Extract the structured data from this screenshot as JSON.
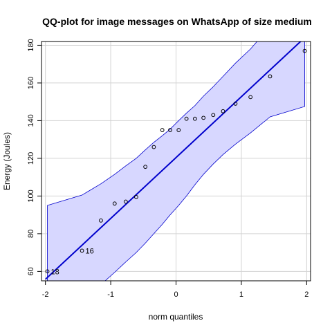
{
  "chart_data": {
    "type": "scatter",
    "title": "QQ-plot for image messages on WhatsApp of size medium",
    "xlabel": "norm quantiles",
    "ylabel": "Energy (Joules)",
    "xlim": [
      -2.06,
      2.06
    ],
    "ylim": [
      55,
      182
    ],
    "xticks": [
      -2,
      -1,
      0,
      1,
      2
    ],
    "yticks": [
      60,
      80,
      100,
      120,
      140,
      160,
      180
    ],
    "grid": true,
    "colors": {
      "band_fill": "#d7d7ff",
      "band_edge": "#0000cc",
      "line": "#0000cc",
      "points": "#000000",
      "grid": "#d3d3d3"
    },
    "points": {
      "x": [
        -1.97,
        -1.44,
        -1.15,
        -0.94,
        -0.77,
        -0.61,
        -0.47,
        -0.34,
        -0.21,
        -0.09,
        0.04,
        0.16,
        0.29,
        0.42,
        0.57,
        0.72,
        0.91,
        1.14,
        1.44,
        1.97
      ],
      "y": [
        60,
        71,
        87,
        96,
        97,
        99.5,
        115.5,
        126,
        135,
        135,
        135,
        141,
        141,
        141.5,
        143,
        145,
        149,
        152.5,
        163.5,
        177
      ]
    },
    "reference_line": {
      "x": [
        -2,
        2
      ],
      "y": [
        55.8,
        185
      ]
    },
    "envelope": {
      "x": [
        -1.97,
        -1.44,
        -1.15,
        -0.94,
        -0.77,
        -0.61,
        -0.47,
        -0.34,
        -0.21,
        -0.09,
        0.04,
        0.16,
        0.29,
        0.42,
        0.57,
        0.72,
        0.91,
        1.14,
        1.44,
        1.97
      ],
      "upper": [
        95,
        100.5,
        106.5,
        111.5,
        116,
        120,
        124.5,
        128.5,
        132,
        135.5,
        140,
        144,
        148,
        153,
        158,
        163.5,
        170.5,
        178,
        190,
        220
      ],
      "lower": [
        30,
        45,
        53,
        59.5,
        65,
        70,
        75,
        80,
        85,
        90,
        95,
        100,
        106,
        111.5,
        117,
        122,
        127.5,
        133.5,
        142,
        147.5
      ]
    },
    "annotations": [
      {
        "label": "16",
        "x": -1.44,
        "y": 71
      },
      {
        "label": "18",
        "x": -1.97,
        "y": 60
      }
    ]
  }
}
